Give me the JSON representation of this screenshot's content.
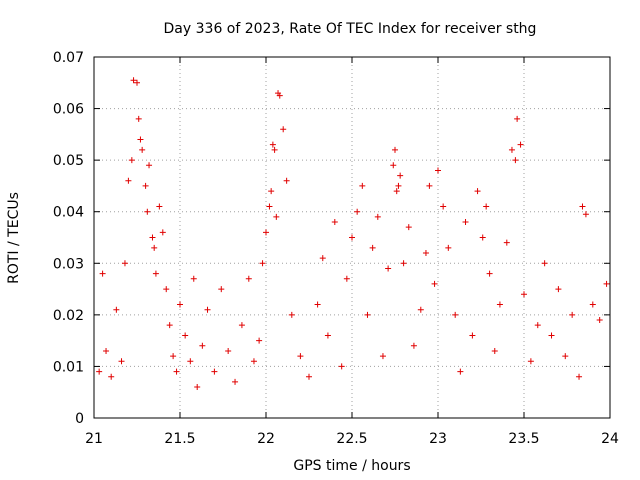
{
  "chart_data": {
    "type": "scatter",
    "title": "Day 336 of 2023, Rate Of TEC Index for receiver sthg",
    "xlabel": "GPS time / hours",
    "ylabel": "ROTI / TECUs",
    "xlim": [
      21,
      24
    ],
    "ylim": [
      0,
      0.07
    ],
    "x_ticks": [
      21,
      21.5,
      22,
      22.5,
      23,
      23.5,
      24
    ],
    "x_tick_labels": [
      "21",
      "21.5",
      "22",
      "22.5",
      "23",
      "23.5",
      "24"
    ],
    "y_ticks": [
      0,
      0.01,
      0.02,
      0.03,
      0.04,
      0.05,
      0.06,
      0.07
    ],
    "y_tick_labels": [
      "0",
      "0.01",
      "0.02",
      "0.03",
      "0.04",
      "0.05",
      "0.06",
      "0.07"
    ],
    "grid": true,
    "marker": "+",
    "color": "#e00000",
    "series": [
      {
        "name": "ROTI",
        "x": [
          21.03,
          21.05,
          21.07,
          21.1,
          21.13,
          21.16,
          21.18,
          21.2,
          21.22,
          21.23,
          21.25,
          21.26,
          21.27,
          21.28,
          21.3,
          21.31,
          21.32,
          21.34,
          21.35,
          21.36,
          21.38,
          21.4,
          21.42,
          21.44,
          21.46,
          21.48,
          21.5,
          21.53,
          21.56,
          21.58,
          21.6,
          21.63,
          21.66,
          21.7,
          21.74,
          21.78,
          21.82,
          21.86,
          21.9,
          21.93,
          21.96,
          21.98,
          22.0,
          22.02,
          22.03,
          22.04,
          22.05,
          22.06,
          22.07,
          22.08,
          22.1,
          22.12,
          22.15,
          22.2,
          22.25,
          22.3,
          22.33,
          22.36,
          22.4,
          22.44,
          22.47,
          22.5,
          22.53,
          22.56,
          22.59,
          22.62,
          22.65,
          22.68,
          22.71,
          22.74,
          22.75,
          22.76,
          22.77,
          22.78,
          22.8,
          22.83,
          22.86,
          22.9,
          22.93,
          22.95,
          22.98,
          23.0,
          23.03,
          23.06,
          23.1,
          23.13,
          23.16,
          23.2,
          23.23,
          23.26,
          23.28,
          23.3,
          23.33,
          23.36,
          23.4,
          23.43,
          23.45,
          23.46,
          23.48,
          23.5,
          23.54,
          23.58,
          23.62,
          23.66,
          23.7,
          23.74,
          23.78,
          23.82,
          23.84,
          23.86,
          23.9,
          23.94,
          23.98
        ],
        "y": [
          0.009,
          0.028,
          0.013,
          0.008,
          0.021,
          0.011,
          0.03,
          0.046,
          0.05,
          0.0655,
          0.065,
          0.058,
          0.054,
          0.052,
          0.045,
          0.04,
          0.049,
          0.035,
          0.033,
          0.028,
          0.041,
          0.036,
          0.025,
          0.018,
          0.012,
          0.009,
          0.022,
          0.016,
          0.011,
          0.027,
          0.006,
          0.014,
          0.021,
          0.009,
          0.025,
          0.013,
          0.007,
          0.018,
          0.027,
          0.011,
          0.015,
          0.03,
          0.036,
          0.041,
          0.044,
          0.053,
          0.052,
          0.039,
          0.063,
          0.0625,
          0.056,
          0.046,
          0.02,
          0.012,
          0.008,
          0.022,
          0.031,
          0.016,
          0.038,
          0.01,
          0.027,
          0.035,
          0.04,
          0.045,
          0.02,
          0.033,
          0.039,
          0.012,
          0.029,
          0.049,
          0.052,
          0.044,
          0.045,
          0.047,
          0.03,
          0.037,
          0.014,
          0.021,
          0.032,
          0.045,
          0.026,
          0.048,
          0.041,
          0.033,
          0.02,
          0.009,
          0.038,
          0.016,
          0.044,
          0.035,
          0.041,
          0.028,
          0.013,
          0.022,
          0.034,
          0.052,
          0.05,
          0.058,
          0.053,
          0.024,
          0.011,
          0.018,
          0.03,
          0.016,
          0.025,
          0.012,
          0.02,
          0.008,
          0.041,
          0.0395,
          0.022,
          0.019,
          0.026
        ]
      }
    ]
  }
}
